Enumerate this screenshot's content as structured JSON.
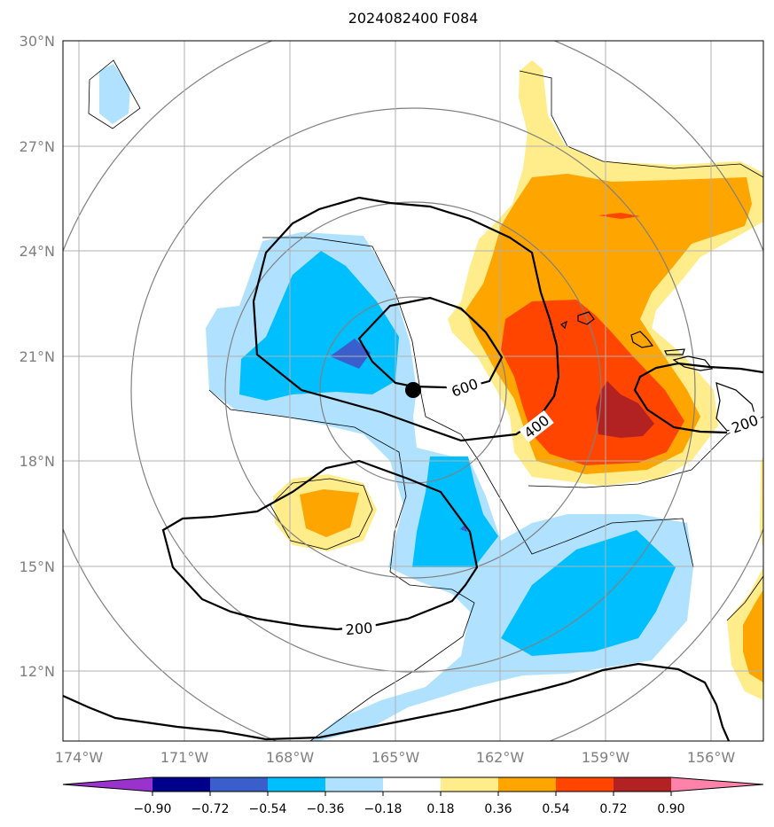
{
  "title": "2024082400 F084",
  "map": {
    "lon_range": [
      -174.5,
      -154.5
    ],
    "lat_range": [
      10.0,
      30.0
    ],
    "lat_ticks": [
      "30°N",
      "27°N",
      "24°N",
      "21°N",
      "18°N",
      "15°N",
      "12°N"
    ],
    "lon_ticks": [
      "174°W",
      "171°W",
      "168°W",
      "165°W",
      "162°W",
      "159°W",
      "156°W"
    ],
    "grid": true,
    "storm_center": {
      "lon": -164.6,
      "lat": 19.9
    },
    "contour_labels": [
      "600",
      "400",
      "200",
      "200"
    ]
  },
  "colorbar": {
    "ticks": [
      "−0.90",
      "−0.72",
      "−0.54",
      "−0.36",
      "−0.18",
      "0.18",
      "0.36",
      "0.54",
      "0.72",
      "0.90"
    ],
    "colors": [
      "#9a32cd",
      "#00008b",
      "#3a5fcd",
      "#00bfff",
      "#b0e2ff",
      "#ffffff",
      "#ffec8b",
      "#ffa500",
      "#ff4500",
      "#b22222",
      "#ff82ab"
    ],
    "extend": "both"
  }
}
